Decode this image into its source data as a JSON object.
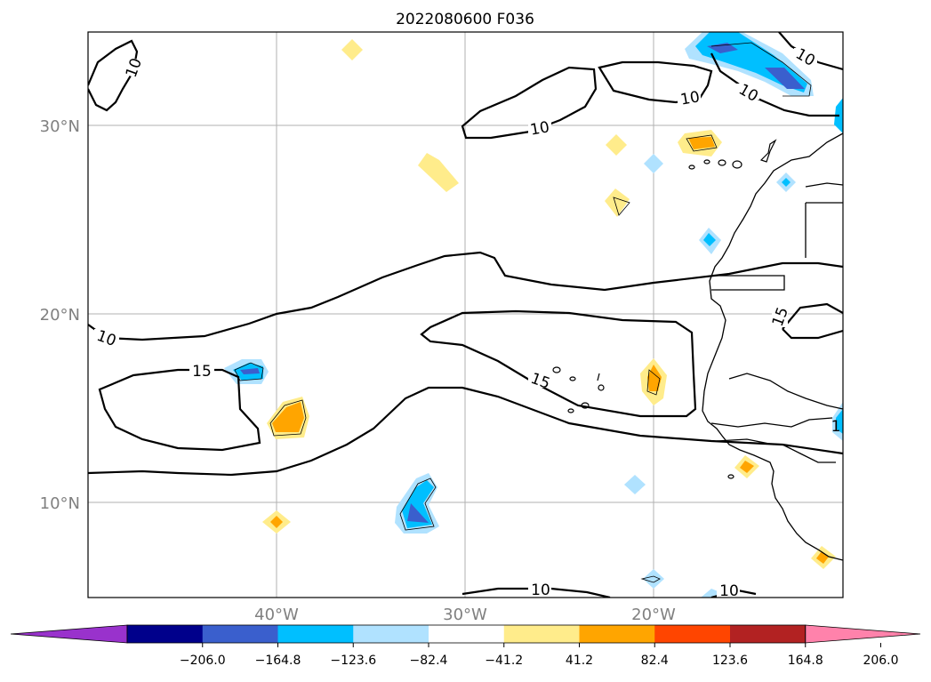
{
  "title": "2022080600 F036",
  "axes": {
    "lon_labels": [
      "40°W",
      "30°W",
      "20°W"
    ],
    "lat_labels": [
      "30°N",
      "20°N",
      "10°N"
    ]
  },
  "contour_labels": [
    "10",
    "10",
    "10",
    "10",
    "10",
    "15",
    "15",
    "15",
    "10",
    "10",
    "10",
    "1"
  ],
  "colorbar": {
    "ticks": [
      "−206.0",
      "−164.8",
      "−123.6",
      "−82.4",
      "−41.2",
      "41.2",
      "82.4",
      "123.6",
      "164.8",
      "206.0"
    ],
    "colors": [
      "#9932cc",
      "#00008b",
      "#3a5fcd",
      "#00bfff",
      "#b0e2ff",
      "#ffffff",
      "#ffec8b",
      "#ffa500",
      "#ff4500",
      "#b22222",
      "#ff82ab"
    ]
  },
  "colors": {
    "axis_label": "#808080",
    "grid": "#b0b0b0",
    "contour": "#000000"
  }
}
